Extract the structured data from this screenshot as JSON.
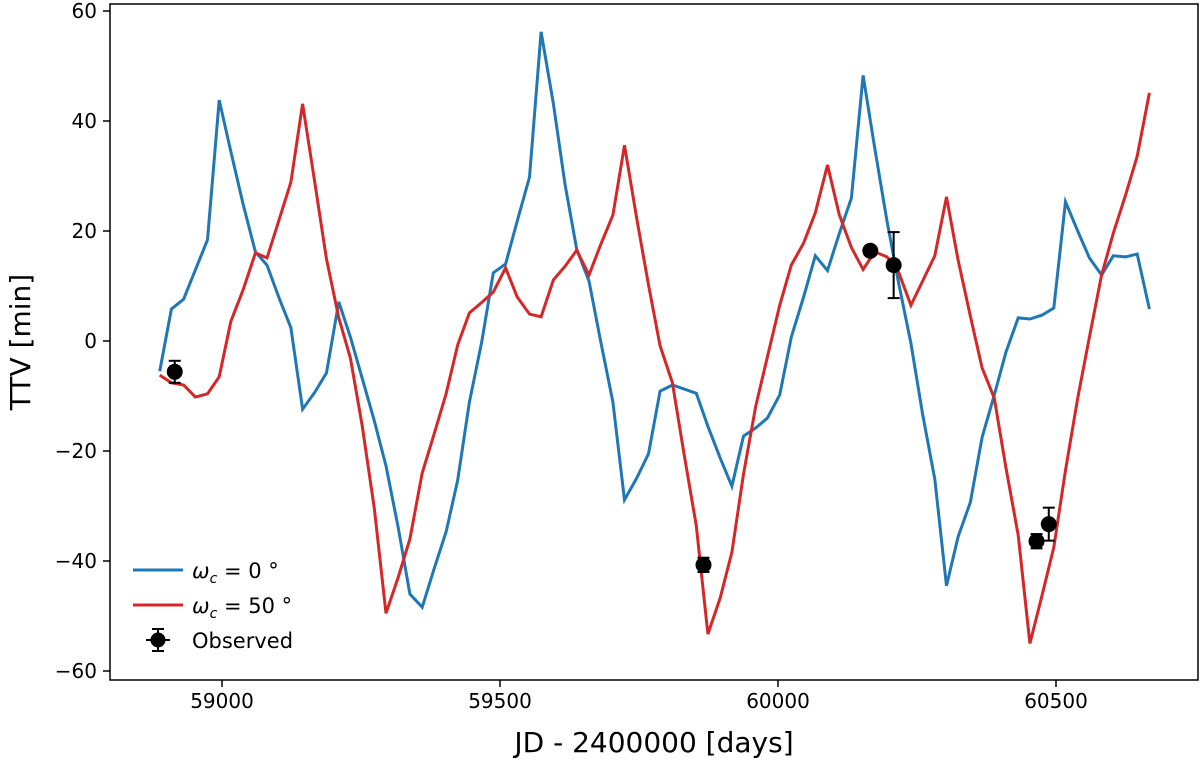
{
  "chart_data": {
    "type": "line",
    "xlabel": "JD - 2400000 [days]",
    "ylabel": "TTV [min]",
    "xlim": [
      58690,
      60890
    ],
    "ylim": [
      -61,
      61
    ],
    "xticks": [
      59000,
      59500,
      60000,
      60500
    ],
    "yticks": [
      -60,
      -40,
      -20,
      0,
      20,
      40,
      60
    ],
    "grid": false,
    "legend_position": "lower-left",
    "x": [
      58888,
      58909,
      58931,
      58952,
      58974,
      58995,
      59016,
      59038,
      59060,
      59081,
      59102,
      59124,
      59145,
      59167,
      59188,
      59210,
      59231,
      59252,
      59274,
      59295,
      59317,
      59338,
      59360,
      59381,
      59403,
      59424,
      59445,
      59467,
      59488,
      59510,
      59531,
      59553,
      59574,
      59596,
      59617,
      59638,
      59660,
      59681,
      59703,
      59724,
      59746,
      59767,
      59788,
      59810,
      59831,
      59853,
      59874,
      59896,
      59917,
      59938,
      59960,
      59981,
      60003,
      60024,
      60046,
      60067,
      60089,
      60110,
      60132,
      60153,
      60174,
      60196,
      60217,
      60239,
      60260,
      60282,
      60303,
      60324,
      60346,
      60367,
      60389,
      60410,
      60432,
      60453,
      60475,
      60496,
      60517,
      60539,
      60560,
      60582,
      60603,
      60625,
      60646,
      60668
    ],
    "series": [
      {
        "name": "ω_c = 0°",
        "legend_main": "ω",
        "legend_sub": "c",
        "legend_rest": " = 0 °",
        "color": "#1f77b4",
        "values": [
          -5.5,
          5.8,
          7.6,
          12.9,
          18.4,
          43.8,
          34.4,
          24.9,
          16.2,
          13.8,
          8,
          2.4,
          -12.4,
          -9.3,
          -5.8,
          7.1,
          0.7,
          -6.7,
          -14.5,
          -22.7,
          -34,
          -46,
          -48.4,
          -41.6,
          -34.7,
          -25.3,
          -11.1,
          -0.2,
          12.4,
          14,
          21.8,
          29.8,
          56.2,
          43.1,
          28.4,
          16.7,
          10.9,
          0,
          -11.1,
          -28.9,
          -24.9,
          -20.5,
          -9.1,
          -8,
          -8.7,
          -9.5,
          -15.5,
          -21.3,
          -26.4,
          -17.3,
          -15.8,
          -14,
          -9.8,
          0.7,
          8,
          15.5,
          12.8,
          19.5,
          26,
          48.3,
          35.1,
          21.8,
          10.5,
          -0.4,
          -13.3,
          -25.1,
          -44.5,
          -35.6,
          -29.3,
          -17.5,
          -9.8,
          -2,
          4.2,
          4,
          4.7,
          6,
          25.3,
          20,
          15.1,
          12,
          15.5,
          15.3,
          15.8,
          5.8
        ]
      },
      {
        "name": "ω_c = 50°",
        "legend_main": "ω",
        "legend_sub": "c",
        "legend_rest": " = 50 °",
        "color": "#d62728",
        "values": [
          -6.2,
          -7.6,
          -8,
          -10.2,
          -9.6,
          -6.5,
          3.6,
          9.3,
          16,
          15.1,
          21.8,
          28.9,
          43.1,
          28.7,
          14.9,
          4.2,
          -3.1,
          -15.3,
          -30.4,
          -49.5,
          -42.9,
          -36,
          -24,
          -17.1,
          -9.6,
          -0.7,
          5.1,
          7,
          8.9,
          13.3,
          8,
          4.9,
          4.4,
          11.1,
          13.6,
          16.5,
          12,
          17.5,
          22.9,
          35.6,
          22.2,
          10.2,
          -0.9,
          -7.6,
          -20.5,
          -33.6,
          -53.3,
          -46.7,
          -38.4,
          -24.2,
          -11.8,
          -2.9,
          6.5,
          13.8,
          17.8,
          23.3,
          32,
          23,
          17,
          13,
          16.2,
          15.3,
          12.5,
          6.5,
          10.9,
          15.5,
          26.2,
          14.7,
          4.5,
          -4.9,
          -10.4,
          -23.1,
          -35.3,
          -55,
          -46.2,
          -37.5,
          -23.5,
          -10.4,
          0.7,
          12,
          19.6,
          26.5,
          33.6,
          45.1
        ]
      }
    ],
    "observed": {
      "name": "Observed",
      "color": "#000000",
      "x": [
        58915,
        59866,
        60166,
        60208,
        60465,
        60487
      ],
      "y": [
        -5.6,
        -40.7,
        16.4,
        13.8,
        -36.4,
        -33.3
      ],
      "yerr": [
        2.0,
        1.3,
        0.5,
        6.0,
        1.3,
        3.0
      ]
    }
  }
}
